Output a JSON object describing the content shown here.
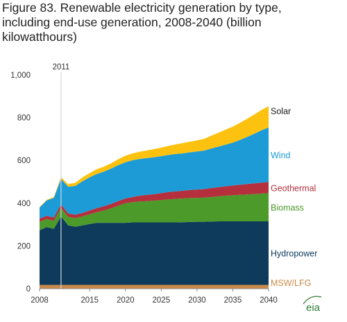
{
  "title_lines": [
    "Figure 83. Renewable electricity generation by type,",
    "including end-use generation, 2008-2040 (billion",
    "kilowatthours)"
  ],
  "logo_text": "eia",
  "chart_data": {
    "type": "area",
    "stacked": true,
    "title": "Figure 83. Renewable electricity generation by type, including end-use generation, 2008-2040 (billion kilowatthours)",
    "xlabel": "",
    "ylabel": "",
    "xlim": [
      2008,
      2040
    ],
    "ylim": [
      0,
      1000
    ],
    "x_ticks": [
      2008,
      2015,
      2020,
      2025,
      2030,
      2035,
      2040
    ],
    "y_ticks": [
      0,
      200,
      400,
      600,
      800,
      1000
    ],
    "y_tick_labels": [
      "0",
      "200",
      "400",
      "600",
      "800",
      "1,000"
    ],
    "grid": false,
    "legend": "direct labels at right",
    "annotation": {
      "label": "2011",
      "x": 2011
    },
    "x": [
      2008,
      2009,
      2010,
      2011,
      2012,
      2013,
      2014,
      2015,
      2016,
      2017,
      2018,
      2019,
      2020,
      2021,
      2022,
      2023,
      2024,
      2025,
      2026,
      2027,
      2028,
      2029,
      2030,
      2031,
      2032,
      2033,
      2034,
      2035,
      2036,
      2037,
      2038,
      2039,
      2040
    ],
    "series": [
      {
        "name": "MSW/LFG",
        "color": "#c98a4a",
        "values": [
          18,
          18,
          18,
          18,
          18,
          18,
          18,
          18,
          18,
          18,
          18,
          18,
          18,
          18,
          18,
          18,
          18,
          18,
          18,
          18,
          18,
          18,
          18,
          18,
          18,
          18,
          18,
          18,
          18,
          18,
          18,
          18,
          18
        ]
      },
      {
        "name": "Hydropower",
        "color": "#0e3a5c",
        "values": [
          255,
          270,
          262,
          320,
          278,
          272,
          278,
          285,
          290,
          290,
          290,
          290,
          290,
          292,
          292,
          292,
          292,
          292,
          292,
          292,
          293,
          294,
          295,
          295,
          296,
          297,
          297,
          297,
          297,
          297,
          297,
          297,
          297
        ]
      },
      {
        "name": "Biomass",
        "color": "#4c9a2a",
        "values": [
          40,
          38,
          38,
          40,
          40,
          40,
          42,
          45,
          50,
          58,
          68,
          80,
          92,
          95,
          98,
          100,
          102,
          105,
          108,
          110,
          111,
          112,
          112,
          113,
          115,
          117,
          120,
          122,
          124,
          126,
          128,
          130,
          132
        ]
      },
      {
        "name": "Geothermal",
        "color": "#b5303c",
        "values": [
          15,
          15,
          15,
          16,
          16,
          16,
          17,
          18,
          19,
          20,
          21,
          22,
          22,
          24,
          27,
          29,
          30,
          32,
          34,
          35,
          36,
          38,
          39,
          40,
          42,
          43,
          44,
          46,
          47,
          49,
          50,
          51,
          52
        ]
      },
      {
        "name": "Wind",
        "color": "#1d9bd7",
        "values": [
          52,
          72,
          92,
          120,
          125,
          135,
          148,
          155,
          160,
          162,
          165,
          168,
          170,
          172,
          172,
          172,
          173,
          173,
          174,
          175,
          175,
          176,
          178,
          180,
          185,
          190,
          195,
          200,
          210,
          220,
          232,
          245,
          255
        ]
      },
      {
        "name": "Solar",
        "color": "#fdc20f",
        "values": [
          2,
          3,
          4,
          8,
          12,
          15,
          18,
          20,
          22,
          23,
          25,
          28,
          30,
          32,
          34,
          36,
          38,
          40,
          42,
          45,
          48,
          50,
          52,
          55,
          60,
          65,
          70,
          75,
          80,
          85,
          90,
          95,
          100
        ]
      }
    ]
  }
}
